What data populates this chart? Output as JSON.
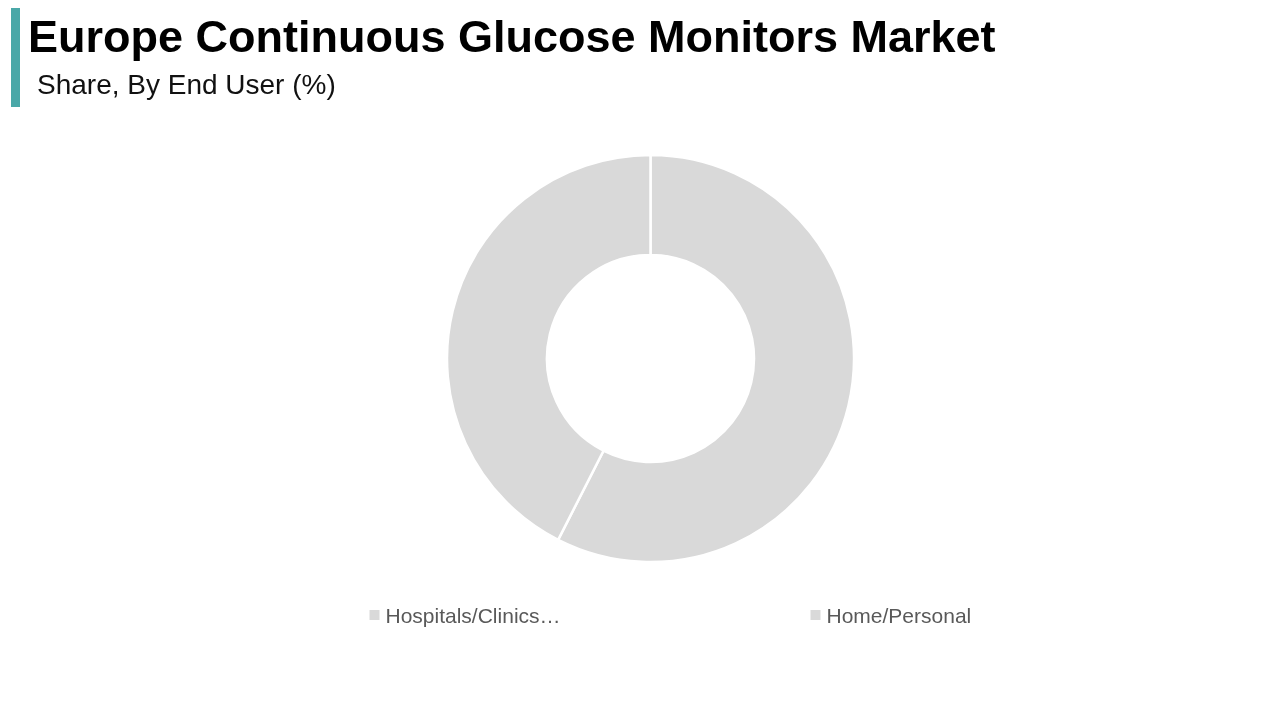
{
  "chart_data": {
    "type": "donut",
    "title": "Europe Continuous Glucose Monitors Market",
    "subtitle": "Share, By End User (%)",
    "categories": [
      "Hospitals/Clinics…",
      "Home/Personal"
    ],
    "values": [
      57.5,
      42.5
    ],
    "colors": [
      "#d9d9d9",
      "#d9d9d9"
    ],
    "legend": "bottom"
  }
}
